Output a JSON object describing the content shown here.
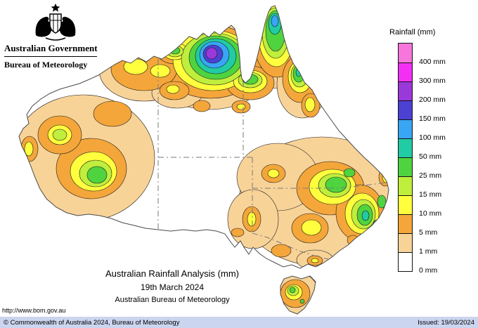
{
  "header": {
    "government": "Australian Government",
    "bureau": "Bureau of Meteorology"
  },
  "legend": {
    "title": "Rainfall (mm)",
    "entries": [
      {
        "label": "400 mm",
        "color": "#f776dc",
        "band": "b400"
      },
      {
        "label": "300 mm",
        "color": "#f42ff4",
        "band": "b300"
      },
      {
        "label": "200 mm",
        "color": "#9a39d9",
        "band": "b200"
      },
      {
        "label": "150 mm",
        "color": "#4c41d3",
        "band": "b150"
      },
      {
        "label": "100 mm",
        "color": "#38a6f5",
        "band": "b100"
      },
      {
        "label": "50 mm",
        "color": "#21cba3",
        "band": "b50"
      },
      {
        "label": "25 mm",
        "color": "#4fd33f",
        "band": "b25"
      },
      {
        "label": "15 mm",
        "color": "#c0ee3c",
        "band": "b15"
      },
      {
        "label": "10 mm",
        "color": "#ffff3d",
        "band": "b10"
      },
      {
        "label": "5 mm",
        "color": "#f4a63a",
        "band": "b5"
      },
      {
        "label": "1 mm",
        "color": "#f8d398",
        "band": "b1"
      },
      {
        "label": "0 mm",
        "color": "#ffffff",
        "band": "b0"
      }
    ]
  },
  "caption": {
    "line1": "Australian Rainfall Analysis (mm)",
    "line2": "19th March 2024",
    "line3": "Australian Bureau of Meteorology"
  },
  "footer": {
    "url": "http://www.bom.gov.au",
    "copyright": "© Commonwealth of Australia 2024, Bureau of Meteorology",
    "issued": "Issued: 19/03/2024"
  }
}
